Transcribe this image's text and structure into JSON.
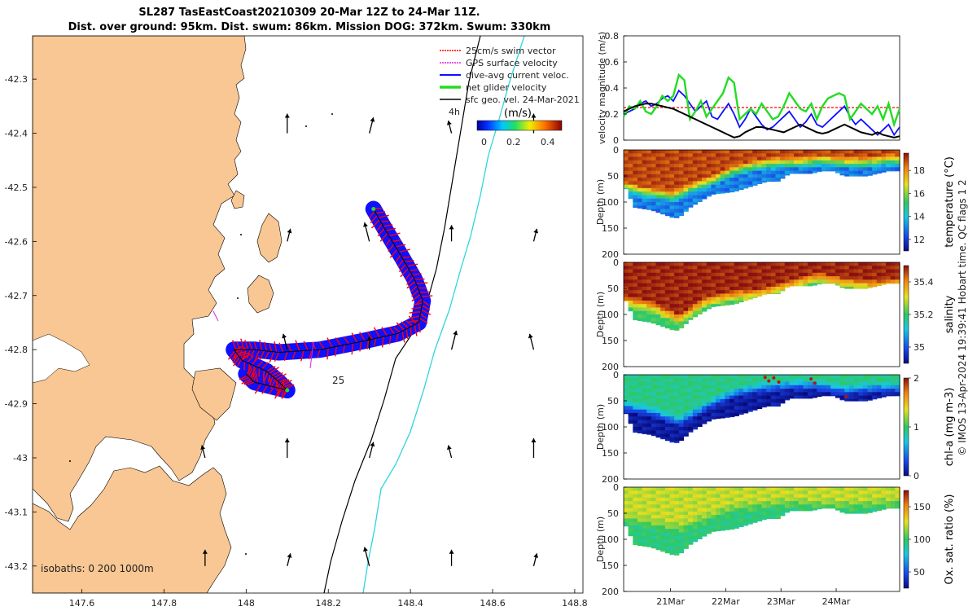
{
  "title": {
    "line1": "SL287 TasEastCoast20210309 20-Mar 12Z to 24-Mar 11Z.",
    "line2": "Dist. over ground: 95km. Dist. swum: 86km. Mission DOG: 372km. Swum: 330km"
  },
  "colors": {
    "land": "#f9c793",
    "bathy_200": "#000000",
    "bathy_1000": "#2ed6dc",
    "swim": "#ff0000",
    "gps": "#e020e0",
    "dive": "#1010ff",
    "net": "#22dd22",
    "geo": "#000000"
  },
  "chart_data": [
    {
      "type": "map",
      "name": "track-map",
      "x_ticks": [
        "147.6",
        "147.8",
        "148",
        "148.2",
        "148.4",
        "148.6",
        "148.8"
      ],
      "y_ticks": [
        "-42.3",
        "-42.4",
        "-42.5",
        "-42.6",
        "-42.7",
        "-42.8",
        "-42.9",
        "-43",
        "-43.1",
        "-43.2"
      ],
      "xlim": [
        147.48,
        148.82
      ],
      "ylim": [
        -43.25,
        -42.22
      ],
      "legend": [
        "25cm/s swim vector",
        "GPS surface velocity",
        "dive-avg current veloc.",
        "net glider velocity",
        "sfc geo. vel. 24-Mar-2021"
      ],
      "legend_time": "4h",
      "colorbar_label": "(m/s)",
      "colorbar_ticks": [
        "0",
        "0.2",
        "0.4"
      ],
      "colorbar_range": [
        0,
        0.5
      ],
      "isobaths_label": "isobaths: 0   200  1000m",
      "annotation": "25",
      "track": [
        [
          148.31,
          -42.54
        ],
        [
          148.34,
          -42.58
        ],
        [
          148.38,
          -42.63
        ],
        [
          148.41,
          -42.67
        ],
        [
          148.43,
          -42.71
        ],
        [
          148.42,
          -42.75
        ],
        [
          148.37,
          -42.77
        ],
        [
          148.28,
          -42.785
        ],
        [
          148.18,
          -42.8
        ],
        [
          148.08,
          -42.805
        ],
        [
          148.02,
          -42.8
        ],
        [
          147.97,
          -42.8
        ],
        [
          147.99,
          -42.82
        ],
        [
          148.05,
          -42.84
        ],
        [
          148.08,
          -42.86
        ],
        [
          148.1,
          -42.875
        ],
        [
          148.02,
          -42.86
        ],
        [
          148.0,
          -42.845
        ]
      ]
    },
    {
      "type": "line",
      "name": "velocity-magnitude",
      "ylabel": "velocity magnitude (m/s)",
      "ylim": [
        0,
        0.8
      ],
      "yticks": [
        "0",
        "0.2",
        "0.4",
        "0.6",
        "0.8"
      ],
      "x": [
        0,
        0.1,
        0.2,
        0.3,
        0.4,
        0.5,
        0.6,
        0.7,
        0.8,
        0.9,
        1.0,
        1.1,
        1.2,
        1.3,
        1.4,
        1.5,
        1.6,
        1.7,
        1.8,
        1.9,
        2.0,
        2.1,
        2.2,
        2.3,
        2.4,
        2.5,
        2.6,
        2.7,
        2.8,
        2.9,
        3.0,
        3.1,
        3.2,
        3.3,
        3.4,
        3.5,
        3.6,
        3.7,
        3.8,
        3.9,
        4.0,
        4.1,
        4.2,
        4.3,
        4.4,
        4.5,
        4.6,
        4.7,
        4.8,
        4.9,
        5.0
      ],
      "series": [
        {
          "name": "swim vector",
          "values": [
            0.25,
            0.25,
            0.25,
            0.25,
            0.25,
            0.25,
            0.25,
            0.25,
            0.25,
            0.25,
            0.25,
            0.25,
            0.25,
            0.25,
            0.25,
            0.25,
            0.25,
            0.25,
            0.25,
            0.25,
            0.25,
            0.25,
            0.25,
            0.25,
            0.25,
            0.25,
            0.25,
            0.25,
            0.25,
            0.25,
            0.25,
            0.25,
            0.25,
            0.25,
            0.25,
            0.25,
            0.25,
            0.25,
            0.25,
            0.25,
            0.25,
            0.25,
            0.25,
            0.25,
            0.25,
            0.25,
            0.25,
            0.25,
            0.25,
            0.25,
            0.25
          ]
        },
        {
          "name": "dive-avg current",
          "values": [
            0.2,
            0.22,
            0.24,
            0.28,
            0.3,
            0.26,
            0.28,
            0.32,
            0.34,
            0.3,
            0.38,
            0.34,
            0.28,
            0.22,
            0.26,
            0.3,
            0.18,
            0.16,
            0.22,
            0.28,
            0.2,
            0.1,
            0.16,
            0.24,
            0.18,
            0.12,
            0.08,
            0.1,
            0.14,
            0.18,
            0.22,
            0.16,
            0.1,
            0.14,
            0.2,
            0.12,
            0.1,
            0.14,
            0.18,
            0.22,
            0.26,
            0.18,
            0.12,
            0.16,
            0.12,
            0.08,
            0.04,
            0.08,
            0.12,
            0.04,
            0.1
          ]
        },
        {
          "name": "net glider",
          "values": [
            0.18,
            0.26,
            0.24,
            0.3,
            0.22,
            0.2,
            0.26,
            0.34,
            0.3,
            0.34,
            0.5,
            0.46,
            0.16,
            0.22,
            0.3,
            0.18,
            0.24,
            0.3,
            0.36,
            0.48,
            0.44,
            0.16,
            0.2,
            0.24,
            0.2,
            0.28,
            0.22,
            0.16,
            0.18,
            0.26,
            0.36,
            0.3,
            0.24,
            0.22,
            0.28,
            0.16,
            0.26,
            0.32,
            0.34,
            0.36,
            0.34,
            0.16,
            0.22,
            0.28,
            0.24,
            0.2,
            0.26,
            0.16,
            0.28,
            0.12,
            0.24
          ]
        },
        {
          "name": "sfc geo.",
          "values": [
            0.22,
            0.24,
            0.26,
            0.27,
            0.28,
            0.28,
            0.27,
            0.26,
            0.25,
            0.24,
            0.22,
            0.2,
            0.18,
            0.16,
            0.14,
            0.12,
            0.1,
            0.08,
            0.06,
            0.04,
            0.02,
            0.03,
            0.06,
            0.08,
            0.1,
            0.1,
            0.09,
            0.08,
            0.07,
            0.06,
            0.08,
            0.1,
            0.12,
            0.1,
            0.08,
            0.06,
            0.05,
            0.06,
            0.08,
            0.1,
            0.12,
            0.1,
            0.08,
            0.06,
            0.05,
            0.04,
            0.06,
            0.04,
            0.03,
            0.02,
            0.03
          ]
        }
      ]
    },
    {
      "type": "heatmap",
      "name": "temperature-section",
      "ylabel": "Depth (m)",
      "colorbar_label": "temperature (°C)",
      "yticks": [
        "0",
        "50",
        "100",
        "150",
        "200"
      ],
      "colorbar_ticks": [
        "12",
        "14",
        "16",
        "18"
      ],
      "clim": [
        11,
        19.5
      ],
      "surface_value": 18.8,
      "deep_value": 13.0,
      "thermocline": [
        [
          0,
          70
        ],
        [
          0.3,
          80
        ],
        [
          0.6,
          85
        ],
        [
          0.9,
          90
        ],
        [
          1.2,
          75
        ],
        [
          1.6,
          60
        ],
        [
          2.0,
          40
        ],
        [
          2.4,
          30
        ],
        [
          2.8,
          25
        ],
        [
          3.2,
          25
        ],
        [
          3.6,
          20
        ],
        [
          4.0,
          25
        ],
        [
          4.4,
          25
        ],
        [
          4.8,
          20
        ],
        [
          5.0,
          20
        ]
      ],
      "bottom": [
        [
          0,
          65
        ],
        [
          0.2,
          110
        ],
        [
          0.5,
          115
        ],
        [
          0.9,
          130
        ],
        [
          1.0,
          130
        ],
        [
          1.2,
          110
        ],
        [
          1.6,
          85
        ],
        [
          2.0,
          80
        ],
        [
          2.3,
          70
        ],
        [
          2.6,
          60
        ],
        [
          2.8,
          60
        ],
        [
          3.0,
          45
        ],
        [
          3.4,
          45
        ],
        [
          3.6,
          40
        ],
        [
          3.8,
          40
        ],
        [
          4.0,
          50
        ],
        [
          4.4,
          50
        ],
        [
          4.8,
          40
        ],
        [
          5.0,
          40
        ]
      ]
    },
    {
      "type": "heatmap",
      "name": "salinity-section",
      "ylabel": "Depth (m)",
      "colorbar_label": "salinity",
      "yticks": [
        "0",
        "50",
        "100",
        "150",
        "200"
      ],
      "colorbar_ticks": [
        "35",
        "35.2",
        "35.4"
      ],
      "clim": [
        34.9,
        35.5
      ],
      "surface_value": 35.48,
      "deep_value": 35.2,
      "thermocline": [
        [
          0,
          75
        ],
        [
          0.5,
          85
        ],
        [
          1.0,
          110
        ],
        [
          1.5,
          75
        ],
        [
          2.0,
          65
        ],
        [
          2.5,
          60
        ],
        [
          3.0,
          45
        ],
        [
          3.5,
          30
        ],
        [
          4.0,
          40
        ],
        [
          4.5,
          45
        ],
        [
          5.0,
          40
        ]
      ],
      "bottom": [
        [
          0,
          65
        ],
        [
          0.2,
          110
        ],
        [
          0.5,
          115
        ],
        [
          0.9,
          130
        ],
        [
          1.0,
          130
        ],
        [
          1.2,
          110
        ],
        [
          1.6,
          85
        ],
        [
          2.0,
          80
        ],
        [
          2.3,
          70
        ],
        [
          2.6,
          60
        ],
        [
          2.8,
          60
        ],
        [
          3.0,
          45
        ],
        [
          3.4,
          45
        ],
        [
          3.6,
          40
        ],
        [
          3.8,
          40
        ],
        [
          4.0,
          50
        ],
        [
          4.4,
          50
        ],
        [
          4.8,
          40
        ],
        [
          5.0,
          40
        ]
      ]
    },
    {
      "type": "heatmap",
      "name": "chla-section",
      "ylabel": "Depth (m)",
      "colorbar_label": "chl-a (mg m-3)",
      "yticks": [
        "0",
        "50",
        "100",
        "150",
        "200"
      ],
      "colorbar_ticks": [
        "0",
        "1",
        "2"
      ],
      "clim": [
        0,
        2
      ],
      "surface_value": 0.9,
      "deep_value": 0.1,
      "thermocline": [
        [
          0,
          60
        ],
        [
          0.5,
          70
        ],
        [
          1.0,
          90
        ],
        [
          1.5,
          60
        ],
        [
          2.0,
          35
        ],
        [
          2.5,
          25
        ],
        [
          3.0,
          20
        ],
        [
          3.5,
          20
        ],
        [
          4.0,
          30
        ],
        [
          4.5,
          25
        ],
        [
          5.0,
          25
        ]
      ],
      "bottom": [
        [
          0,
          65
        ],
        [
          0.2,
          110
        ],
        [
          0.5,
          115
        ],
        [
          0.9,
          130
        ],
        [
          1.0,
          130
        ],
        [
          1.2,
          110
        ],
        [
          1.6,
          85
        ],
        [
          2.0,
          80
        ],
        [
          2.3,
          70
        ],
        [
          2.6,
          60
        ],
        [
          2.8,
          60
        ],
        [
          3.0,
          45
        ],
        [
          3.4,
          45
        ],
        [
          3.6,
          40
        ],
        [
          3.8,
          40
        ],
        [
          4.0,
          50
        ],
        [
          4.4,
          50
        ],
        [
          4.8,
          40
        ],
        [
          5.0,
          40
        ]
      ]
    },
    {
      "type": "heatmap",
      "name": "oxygen-section",
      "ylabel": "Depth (m)",
      "colorbar_label": "Ox. sat. ratio (%)",
      "yticks": [
        "0",
        "50",
        "100",
        "150",
        "200"
      ],
      "colorbar_ticks": [
        "50",
        "100",
        "150"
      ],
      "clim": [
        25,
        175
      ],
      "surface_value": 120,
      "deep_value": 95,
      "thermocline": [
        [
          0,
          60
        ],
        [
          1.0,
          80
        ],
        [
          2.0,
          40
        ],
        [
          3.0,
          30
        ],
        [
          4.0,
          35
        ],
        [
          5.0,
          30
        ]
      ],
      "bottom": [
        [
          0,
          65
        ],
        [
          0.2,
          110
        ],
        [
          0.5,
          115
        ],
        [
          0.9,
          130
        ],
        [
          1.0,
          130
        ],
        [
          1.2,
          110
        ],
        [
          1.6,
          85
        ],
        [
          2.0,
          80
        ],
        [
          2.3,
          70
        ],
        [
          2.6,
          60
        ],
        [
          2.8,
          60
        ],
        [
          3.0,
          45
        ],
        [
          3.4,
          45
        ],
        [
          3.6,
          40
        ],
        [
          3.8,
          40
        ],
        [
          4.0,
          50
        ],
        [
          4.4,
          50
        ],
        [
          4.8,
          40
        ],
        [
          5.0,
          40
        ]
      ]
    }
  ],
  "time_ticks": [
    "21Mar",
    "22Mar",
    "23Mar",
    "24Mar"
  ],
  "time_tick_positions": [
    0.85,
    1.85,
    2.85,
    3.85
  ],
  "time_range": [
    0,
    5.0
  ],
  "footer_note": "© IMOS 13-Apr-2024 19:39:41 Hobart time. QC flags 1  2"
}
